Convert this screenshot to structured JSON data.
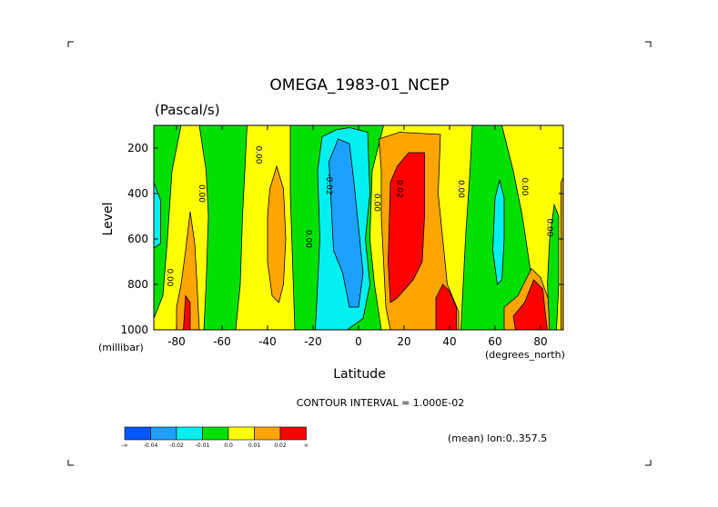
{
  "chart_data": {
    "type": "heatmap",
    "title": "OMEGA_1983-01_NCEP",
    "units": "(Pascal/s)",
    "xlabel": "Latitude",
    "ylabel": "Level",
    "x_units": "(degrees_north)",
    "y_units": "(millibar)",
    "xlim": [
      -90,
      90
    ],
    "ylim": [
      1000,
      100
    ],
    "x_ticks": [
      -80,
      -60,
      -40,
      -20,
      0,
      20,
      40,
      60,
      80
    ],
    "x_tick_labels": [
      "-80",
      "-60",
      "-40",
      "-20",
      "0",
      "20",
      "40",
      "60",
      "80"
    ],
    "y_ticks": [
      200,
      400,
      600,
      800,
      1000
    ],
    "y_tick_labels": [
      "200",
      "400",
      "600",
      "800",
      "1000"
    ],
    "contour_interval_text": "CONTOUR INTERVAL = 1.000E-02",
    "mean_text": "(mean) lon:0..357.5",
    "legend": {
      "colors": [
        "#0055ff",
        "#1ea0ff",
        "#00f0f0",
        "#00e000",
        "#ffff00",
        "#ffa500",
        "#ff0000"
      ],
      "labels": [
        "-∞",
        "-0.04",
        "-0.02",
        "-0.01",
        "0.0",
        "0.01",
        "0.02",
        "∞"
      ]
    },
    "contour_labels": [
      {
        "text": "0.00",
        "lat": -84,
        "p": 770
      },
      {
        "text": "0.00",
        "lat": -70,
        "p": 400
      },
      {
        "text": "0.00",
        "lat": -45,
        "p": 230
      },
      {
        "text": "0.00",
        "lat": -23,
        "p": 600
      },
      {
        "text": "-0.02",
        "lat": -14,
        "p": 360
      },
      {
        "text": "0.00",
        "lat": 7,
        "p": 440
      },
      {
        "text": "0.02",
        "lat": 17,
        "p": 380
      },
      {
        "text": "0.00",
        "lat": 44,
        "p": 380
      },
      {
        "text": "0.00",
        "lat": 72,
        "p": 370
      },
      {
        "text": "0.00",
        "lat": 83,
        "p": 550
      }
    ],
    "regions": [
      {
        "color": "#ffff00",
        "pts": [
          [
            -90,
            100
          ],
          [
            90,
            100
          ],
          [
            90,
            1000
          ],
          [
            -90,
            1000
          ]
        ]
      },
      {
        "color": "#00e000",
        "pts": [
          [
            -90,
            100
          ],
          [
            -78,
            100
          ],
          [
            -82,
            300
          ],
          [
            -84,
            600
          ],
          [
            -86,
            850
          ],
          [
            -90,
            950
          ]
        ]
      },
      {
        "color": "#00e000",
        "pts": [
          [
            -70,
            100
          ],
          [
            -49,
            100
          ],
          [
            -51,
            500
          ],
          [
            -52,
            800
          ],
          [
            -54,
            1000
          ],
          [
            -68,
            1000
          ],
          [
            -67,
            800
          ],
          [
            -66,
            500
          ],
          [
            -67,
            300
          ]
        ]
      },
      {
        "color": "#00e000",
        "pts": [
          [
            -30,
            100
          ],
          [
            11,
            100
          ],
          [
            6,
            300
          ],
          [
            5,
            600
          ],
          [
            7,
            800
          ],
          [
            10,
            1000
          ],
          [
            -28,
            1000
          ],
          [
            -29,
            700
          ],
          [
            -30,
            400
          ]
        ]
      },
      {
        "color": "#00e000",
        "pts": [
          [
            50,
            100
          ],
          [
            63,
            100
          ],
          [
            68,
            300
          ],
          [
            72,
            500
          ],
          [
            75,
            700
          ],
          [
            79,
            1000
          ],
          [
            45,
            1000
          ],
          [
            46,
            800
          ],
          [
            47,
            600
          ],
          [
            49,
            300
          ]
        ]
      },
      {
        "color": "#ffa500",
        "pts": [
          [
            -76,
            650
          ],
          [
            -74,
            480
          ],
          [
            -72,
            620
          ],
          [
            -71,
            800
          ],
          [
            -70,
            1000
          ],
          [
            -80,
            1000
          ],
          [
            -80,
            900
          ],
          [
            -78,
            800
          ]
        ]
      },
      {
        "color": "#ff0000",
        "pts": [
          [
            -76,
            850
          ],
          [
            -74,
            880
          ],
          [
            -74,
            1000
          ],
          [
            -77,
            1000
          ]
        ]
      },
      {
        "color": "#ffa500",
        "pts": [
          [
            -39,
            380
          ],
          [
            -36,
            280
          ],
          [
            -33,
            380
          ],
          [
            -32,
            600
          ],
          [
            -33,
            800
          ],
          [
            -35,
            880
          ],
          [
            -38,
            850
          ],
          [
            -40,
            700
          ],
          [
            -40,
            500
          ]
        ]
      },
      {
        "color": "#00f0f0",
        "pts": [
          [
            -16,
            150
          ],
          [
            -10,
            120
          ],
          [
            -4,
            110
          ],
          [
            4,
            130
          ],
          [
            5,
            400
          ],
          [
            3,
            600
          ],
          [
            5,
            800
          ],
          [
            2,
            950
          ],
          [
            -5,
            1000
          ],
          [
            -19,
            1000
          ],
          [
            -18,
            800
          ],
          [
            -17,
            600
          ],
          [
            -18,
            300
          ]
        ]
      },
      {
        "color": "#1ea0ff",
        "pts": [
          [
            -13,
            260
          ],
          [
            -9,
            160
          ],
          [
            -4,
            180
          ],
          [
            -2,
            350
          ],
          [
            0,
            550
          ],
          [
            2,
            750
          ],
          [
            0,
            900
          ],
          [
            -4,
            900
          ],
          [
            -7,
            750
          ],
          [
            -11,
            650
          ],
          [
            -12,
            450
          ]
        ]
      },
      {
        "color": "#ffa500",
        "pts": [
          [
            9,
            160
          ],
          [
            18,
            130
          ],
          [
            36,
            140
          ],
          [
            35,
            400
          ],
          [
            37,
            600
          ],
          [
            39,
            800
          ],
          [
            44,
            920
          ],
          [
            44,
            1000
          ],
          [
            14,
            1000
          ],
          [
            12,
            900
          ],
          [
            11,
            700
          ],
          [
            10,
            500
          ],
          [
            10,
            300
          ]
        ]
      },
      {
        "color": "#ff0000",
        "pts": [
          [
            14,
            350
          ],
          [
            17,
            280
          ],
          [
            22,
            220
          ],
          [
            29,
            220
          ],
          [
            29,
            500
          ],
          [
            28,
            700
          ],
          [
            24,
            780
          ],
          [
            17,
            860
          ],
          [
            14,
            880
          ],
          [
            13,
            700
          ]
        ]
      },
      {
        "color": "#ff0000",
        "pts": [
          [
            34,
            860
          ],
          [
            37,
            800
          ],
          [
            40,
            830
          ],
          [
            43,
            900
          ],
          [
            43,
            1000
          ],
          [
            34,
            1000
          ]
        ]
      },
      {
        "color": "#00f0f0",
        "pts": [
          [
            60,
            420
          ],
          [
            62,
            340
          ],
          [
            64,
            420
          ],
          [
            64,
            600
          ],
          [
            63,
            780
          ],
          [
            61,
            800
          ],
          [
            59,
            650
          ]
        ]
      },
      {
        "color": "#ffa500",
        "pts": [
          [
            64,
            900
          ],
          [
            70,
            850
          ],
          [
            76,
            730
          ],
          [
            80,
            770
          ],
          [
            84,
            880
          ],
          [
            86,
            1000
          ],
          [
            64,
            1000
          ]
        ]
      },
      {
        "color": "#ff0000",
        "pts": [
          [
            68,
            940
          ],
          [
            73,
            880
          ],
          [
            77,
            780
          ],
          [
            81,
            820
          ],
          [
            82,
            920
          ],
          [
            83,
            1000
          ],
          [
            69,
            1000
          ]
        ]
      },
      {
        "color": "#00e000",
        "pts": [
          [
            84,
            600
          ],
          [
            86,
            450
          ],
          [
            88,
            500
          ],
          [
            88,
            800
          ],
          [
            87,
            1000
          ],
          [
            84,
            1000
          ],
          [
            83,
            800
          ]
        ]
      },
      {
        "color": "#ffa500",
        "pts": [
          [
            89,
            350
          ],
          [
            90,
            330
          ],
          [
            90,
            1000
          ],
          [
            89,
            1000
          ]
        ]
      },
      {
        "color": "#00f0f0",
        "pts": [
          [
            -90,
            350
          ],
          [
            -87,
            430
          ],
          [
            -87,
            620
          ],
          [
            -90,
            640
          ]
        ]
      }
    ]
  }
}
